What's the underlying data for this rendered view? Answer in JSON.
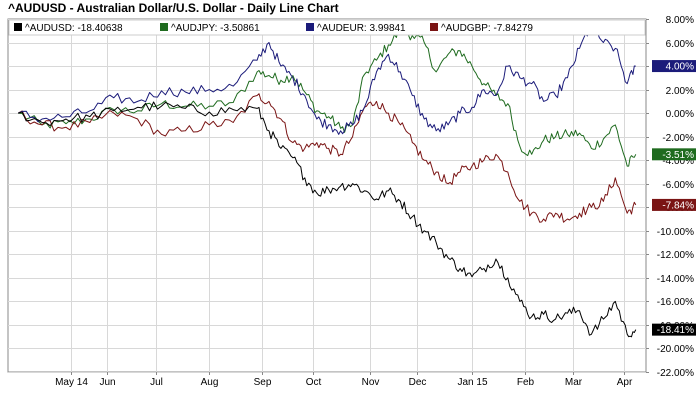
{
  "chart_data": {
    "type": "line",
    "title": "^AUDUSD - Australian Dollar/U.S. Dollar - Daily Line Chart",
    "x_tick_labels": [
      "May 14",
      "Jun",
      "Jul",
      "Aug",
      "Sep",
      "Oct",
      "Nov",
      "Dec",
      "Jan 15",
      "Feb",
      "Mar",
      "Apr"
    ],
    "x_range": [
      "Apr 2014",
      "Apr 2015"
    ],
    "y_unit": "%",
    "ylim": [
      -22,
      8
    ],
    "y_ticks": [
      "8.00%",
      "6.00%",
      "4.00%",
      "2.00%",
      "0.00%",
      "-2.00%",
      "-4.00%",
      "-6.00%",
      "-8.00%",
      "-10.00%",
      "-12.00%",
      "-14.00%",
      "-16.00%",
      "-18.00%",
      "-20.00%",
      "-22.00%"
    ],
    "y_axis_position": "right",
    "grid": true,
    "legend_position": "top",
    "series": [
      {
        "name": "^AUDUSD",
        "legend": "^AUDUSD: -18.40638",
        "end_label": "-18.41%",
        "color": "#000000",
        "points": [
          [
            "2014-04-11",
            0.0
          ],
          [
            "2014-04-25",
            -0.8
          ],
          [
            "2014-05-09",
            -0.5
          ],
          [
            "2014-05-23",
            -0.3
          ],
          [
            "2014-06-06",
            0.2
          ],
          [
            "2014-06-20",
            0.5
          ],
          [
            "2014-07-04",
            0.6
          ],
          [
            "2014-07-18",
            0.4
          ],
          [
            "2014-08-01",
            0.1
          ],
          [
            "2014-08-15",
            0.3
          ],
          [
            "2014-08-29",
            0.4
          ],
          [
            "2014-09-05",
            -1.5
          ],
          [
            "2014-09-12",
            -3.0
          ],
          [
            "2014-09-19",
            -3.8
          ],
          [
            "2014-09-26",
            -5.5
          ],
          [
            "2014-10-03",
            -6.8
          ],
          [
            "2014-10-10",
            -6.5
          ],
          [
            "2014-10-17",
            -6.2
          ],
          [
            "2014-10-24",
            -6.0
          ],
          [
            "2014-10-31",
            -6.6
          ],
          [
            "2014-11-07",
            -7.3
          ],
          [
            "2014-11-14",
            -6.6
          ],
          [
            "2014-11-21",
            -7.5
          ],
          [
            "2014-11-28",
            -8.8
          ],
          [
            "2014-12-05",
            -10.0
          ],
          [
            "2014-12-12",
            -11.0
          ],
          [
            "2014-12-19",
            -12.3
          ],
          [
            "2014-12-26",
            -13.2
          ],
          [
            "2015-01-02",
            -13.9
          ],
          [
            "2015-01-09",
            -13.2
          ],
          [
            "2015-01-16",
            -12.4
          ],
          [
            "2015-01-23",
            -14.0
          ],
          [
            "2015-01-30",
            -16.0
          ],
          [
            "2015-02-06",
            -17.3
          ],
          [
            "2015-02-13",
            -17.1
          ],
          [
            "2015-02-20",
            -17.5
          ],
          [
            "2015-02-27",
            -17.0
          ],
          [
            "2015-03-06",
            -16.8
          ],
          [
            "2015-03-13",
            -18.8
          ],
          [
            "2015-03-20",
            -17.5
          ],
          [
            "2015-03-27",
            -16.0
          ],
          [
            "2015-04-03",
            -18.8
          ],
          [
            "2015-04-08",
            -18.4
          ]
        ]
      },
      {
        "name": "^AUDJPY",
        "legend": "^AUDJPY: -3.50861",
        "end_label": "-3.51%",
        "color": "#1f6b1f",
        "points": [
          [
            "2014-04-11",
            0.0
          ],
          [
            "2014-04-25",
            -1.0
          ],
          [
            "2014-05-09",
            -0.9
          ],
          [
            "2014-05-23",
            -0.5
          ],
          [
            "2014-06-06",
            0.3
          ],
          [
            "2014-06-20",
            0.2
          ],
          [
            "2014-07-04",
            0.8
          ],
          [
            "2014-07-18",
            0.6
          ],
          [
            "2014-08-01",
            0.6
          ],
          [
            "2014-08-15",
            0.9
          ],
          [
            "2014-08-29",
            3.5
          ],
          [
            "2014-09-05",
            3.2
          ],
          [
            "2014-09-12",
            2.8
          ],
          [
            "2014-09-19",
            3.2
          ],
          [
            "2014-09-26",
            1.8
          ],
          [
            "2014-10-03",
            0.2
          ],
          [
            "2014-10-10",
            -0.3
          ],
          [
            "2014-10-17",
            -1.3
          ],
          [
            "2014-10-24",
            -1.0
          ],
          [
            "2014-10-31",
            3.3
          ],
          [
            "2014-11-07",
            4.5
          ],
          [
            "2014-11-14",
            5.8
          ],
          [
            "2014-11-21",
            7.0
          ],
          [
            "2014-11-28",
            6.6
          ],
          [
            "2014-12-05",
            6.0
          ],
          [
            "2014-12-12",
            3.5
          ],
          [
            "2014-12-19",
            5.0
          ],
          [
            "2014-12-26",
            5.3
          ],
          [
            "2015-01-02",
            4.0
          ],
          [
            "2015-01-09",
            2.5
          ],
          [
            "2015-01-16",
            1.5
          ],
          [
            "2015-01-23",
            0.8
          ],
          [
            "2015-01-30",
            -2.8
          ],
          [
            "2015-02-06",
            -3.5
          ],
          [
            "2015-02-13",
            -2.3
          ],
          [
            "2015-02-20",
            -2.0
          ],
          [
            "2015-02-27",
            -1.8
          ],
          [
            "2015-03-06",
            -1.7
          ],
          [
            "2015-03-13",
            -3.0
          ],
          [
            "2015-03-20",
            -2.2
          ],
          [
            "2015-03-27",
            -1.0
          ],
          [
            "2015-04-03",
            -4.5
          ],
          [
            "2015-04-08",
            -3.5
          ]
        ]
      },
      {
        "name": "^AUDEUR",
        "legend": "^AUDEUR: 3.99841",
        "end_label": "4.00%",
        "color": "#1b1b7a",
        "points": [
          [
            "2014-04-11",
            0.0
          ],
          [
            "2014-04-25",
            -0.5
          ],
          [
            "2014-05-09",
            -0.3
          ],
          [
            "2014-05-23",
            0.2
          ],
          [
            "2014-06-06",
            1.3
          ],
          [
            "2014-06-20",
            1.0
          ],
          [
            "2014-07-04",
            1.9
          ],
          [
            "2014-07-18",
            1.8
          ],
          [
            "2014-08-01",
            2.0
          ],
          [
            "2014-08-15",
            2.3
          ],
          [
            "2014-08-29",
            4.5
          ],
          [
            "2014-09-05",
            6.0
          ],
          [
            "2014-09-12",
            4.0
          ],
          [
            "2014-09-19",
            3.0
          ],
          [
            "2014-09-26",
            1.5
          ],
          [
            "2014-10-03",
            -0.5
          ],
          [
            "2014-10-10",
            -1.0
          ],
          [
            "2014-10-17",
            -1.5
          ],
          [
            "2014-10-24",
            -1.0
          ],
          [
            "2014-10-31",
            0.5
          ],
          [
            "2014-11-07",
            3.5
          ],
          [
            "2014-11-14",
            5.0
          ],
          [
            "2014-11-21",
            3.5
          ],
          [
            "2014-11-28",
            1.5
          ],
          [
            "2014-12-05",
            -0.5
          ],
          [
            "2014-12-12",
            -1.5
          ],
          [
            "2014-12-19",
            -1.0
          ],
          [
            "2014-12-26",
            0.0
          ],
          [
            "2015-01-02",
            0.5
          ],
          [
            "2015-01-09",
            2.0
          ],
          [
            "2015-01-16",
            1.5
          ],
          [
            "2015-01-23",
            4.0
          ],
          [
            "2015-01-30",
            3.0
          ],
          [
            "2015-02-06",
            2.5
          ],
          [
            "2015-02-13",
            1.0
          ],
          [
            "2015-02-20",
            1.5
          ],
          [
            "2015-02-27",
            3.0
          ],
          [
            "2015-03-06",
            5.5
          ],
          [
            "2015-03-13",
            7.5
          ],
          [
            "2015-03-20",
            6.0
          ],
          [
            "2015-03-27",
            5.5
          ],
          [
            "2015-04-03",
            2.5
          ],
          [
            "2015-04-08",
            4.0
          ]
        ]
      },
      {
        "name": "^AUDGBP",
        "legend": "^AUDGBP: -7.84279",
        "end_label": "-7.84%",
        "color": "#7a1414",
        "points": [
          [
            "2014-04-11",
            0.0
          ],
          [
            "2014-04-25",
            -1.0
          ],
          [
            "2014-05-09",
            -1.2
          ],
          [
            "2014-05-23",
            -0.8
          ],
          [
            "2014-06-06",
            0.0
          ],
          [
            "2014-06-20",
            -0.5
          ],
          [
            "2014-07-04",
            -1.8
          ],
          [
            "2014-07-18",
            -1.5
          ],
          [
            "2014-08-01",
            -1.0
          ],
          [
            "2014-08-15",
            -0.8
          ],
          [
            "2014-08-29",
            1.5
          ],
          [
            "2014-09-05",
            1.0
          ],
          [
            "2014-09-12",
            -0.5
          ],
          [
            "2014-09-19",
            -2.5
          ],
          [
            "2014-09-26",
            -3.0
          ],
          [
            "2014-10-03",
            -2.5
          ],
          [
            "2014-10-10",
            -3.0
          ],
          [
            "2014-10-17",
            -3.5
          ],
          [
            "2014-10-24",
            -2.0
          ],
          [
            "2014-10-31",
            0.5
          ],
          [
            "2014-11-07",
            1.0
          ],
          [
            "2014-11-14",
            0.0
          ],
          [
            "2014-11-21",
            -1.0
          ],
          [
            "2014-11-28",
            -2.5
          ],
          [
            "2014-12-05",
            -4.0
          ],
          [
            "2014-12-12",
            -5.0
          ],
          [
            "2014-12-19",
            -6.0
          ],
          [
            "2014-12-26",
            -5.0
          ],
          [
            "2015-01-02",
            -4.5
          ],
          [
            "2015-01-09",
            -4.0
          ],
          [
            "2015-01-16",
            -3.5
          ],
          [
            "2015-01-23",
            -5.0
          ],
          [
            "2015-01-30",
            -7.5
          ],
          [
            "2015-02-06",
            -8.5
          ],
          [
            "2015-02-13",
            -9.0
          ],
          [
            "2015-02-20",
            -8.5
          ],
          [
            "2015-02-27",
            -9.0
          ],
          [
            "2015-03-06",
            -8.5
          ],
          [
            "2015-03-13",
            -8.0
          ],
          [
            "2015-03-20",
            -7.5
          ],
          [
            "2015-03-27",
            -5.5
          ],
          [
            "2015-04-03",
            -8.5
          ],
          [
            "2015-04-08",
            -7.8
          ]
        ]
      }
    ]
  }
}
